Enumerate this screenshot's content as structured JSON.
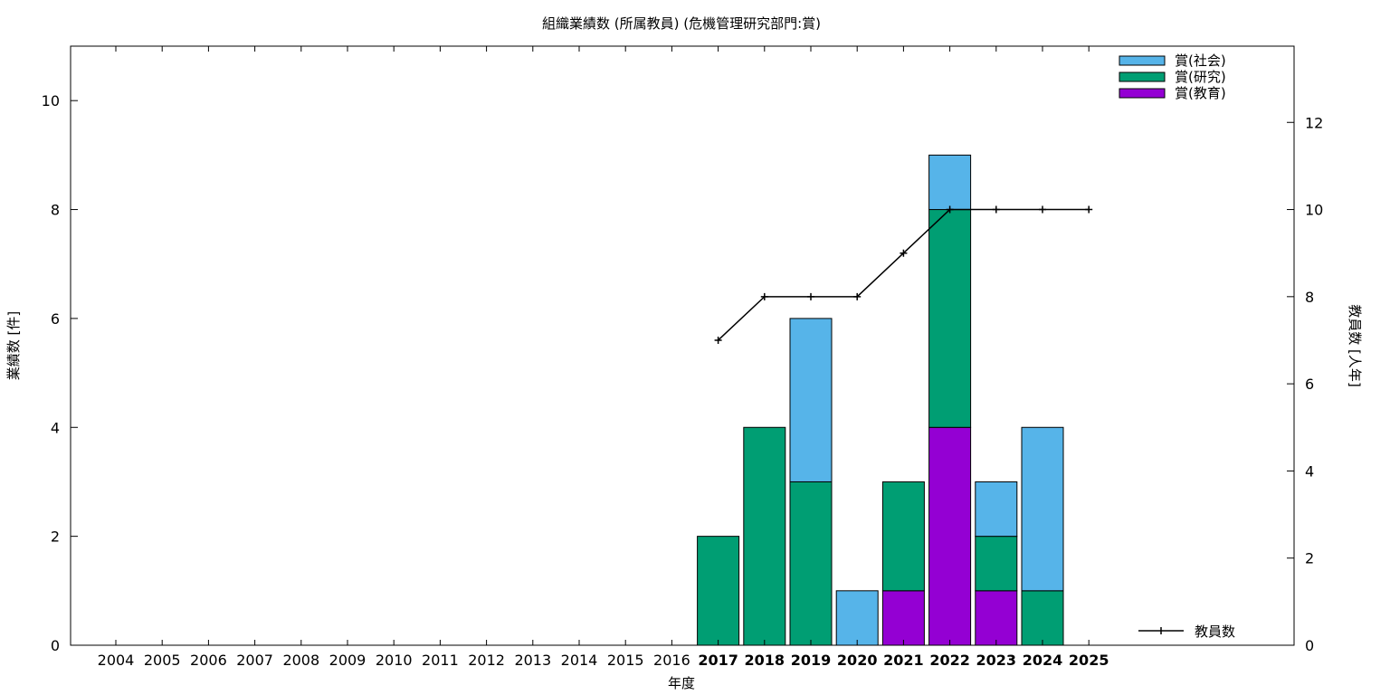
{
  "chart_data": {
    "type": "bar",
    "title": "組織業績数 (所属教員) (危機管理研究部門:賞)",
    "xlabel": "年度",
    "ylabel_left": "業績数 [件]",
    "ylabel_right": "教員数 [人年]",
    "categories": [
      "2004",
      "2005",
      "2006",
      "2007",
      "2008",
      "2009",
      "2010",
      "2011",
      "2012",
      "2013",
      "2014",
      "2015",
      "2016",
      "2017",
      "2018",
      "2019",
      "2020",
      "2021",
      "2022",
      "2023",
      "2024",
      "2025"
    ],
    "bold_categories": [
      "2017",
      "2018",
      "2019",
      "2020",
      "2021",
      "2022",
      "2023",
      "2024",
      "2025"
    ],
    "ylim_left": [
      0,
      11
    ],
    "yticks_left": [
      0,
      2,
      4,
      6,
      8,
      10
    ],
    "ylim_right": [
      0,
      13.75
    ],
    "yticks_right": [
      0,
      2,
      4,
      6,
      8,
      10,
      12
    ],
    "stacked": true,
    "series": [
      {
        "name": "賞(教育)",
        "color": "#9400d3",
        "values": [
          0,
          0,
          0,
          0,
          0,
          0,
          0,
          0,
          0,
          0,
          0,
          0,
          0,
          0,
          0,
          0,
          0,
          1,
          4,
          1,
          0,
          0
        ]
      },
      {
        "name": "賞(研究)",
        "color": "#009e73",
        "values": [
          0,
          0,
          0,
          0,
          0,
          0,
          0,
          0,
          0,
          0,
          0,
          0,
          0,
          2,
          4,
          3,
          0,
          2,
          4,
          1,
          1,
          0
        ]
      },
      {
        "name": "賞(社会)",
        "color": "#56b4e9",
        "values": [
          0,
          0,
          0,
          0,
          0,
          0,
          0,
          0,
          0,
          0,
          0,
          0,
          0,
          0,
          0,
          3,
          1,
          0,
          1,
          1,
          3,
          0
        ]
      }
    ],
    "line_series": {
      "name": "教員数",
      "color": "#000000",
      "axis": "right",
      "x": [
        "2017",
        "2018",
        "2019",
        "2020",
        "2021",
        "2022",
        "2023",
        "2024",
        "2025"
      ],
      "values": [
        7,
        8,
        8,
        8,
        9,
        10,
        10,
        10,
        10
      ]
    },
    "legend_position": "top-right",
    "line_legend_position": "bottom-right",
    "grid": false
  }
}
